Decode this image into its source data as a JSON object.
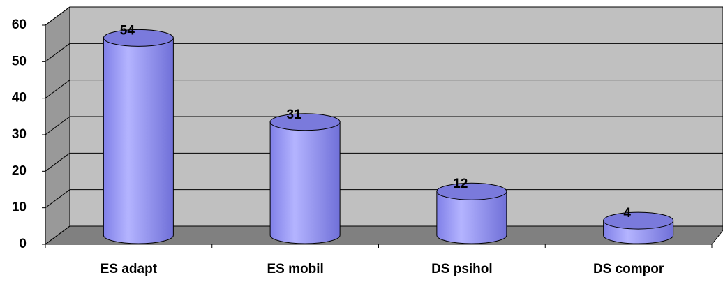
{
  "chart_data": {
    "type": "bar",
    "categories": [
      "ES adapt",
      "ES mobil",
      "DS psihol",
      "DS compor"
    ],
    "values": [
      54,
      31,
      12,
      4
    ],
    "color": "#9999ff",
    "ylim": [
      0,
      60
    ],
    "yticks": [
      0,
      10,
      20,
      30,
      40,
      50,
      60
    ],
    "grid": true
  }
}
